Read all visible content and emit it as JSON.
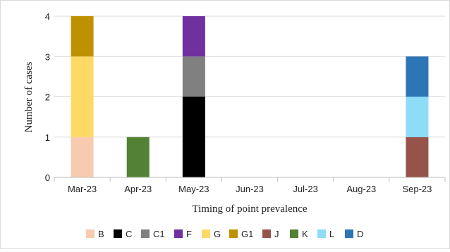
{
  "chart_data": {
    "type": "bar",
    "stacked": true,
    "categories": [
      "Mar-23",
      "Apr-23",
      "May-23",
      "Jun-23",
      "Jul-23",
      "Aug-23",
      "Sep-23"
    ],
    "series": [
      {
        "name": "B",
        "color": "#f7cbb0",
        "values": [
          1,
          0,
          0,
          0,
          0,
          0,
          0
        ]
      },
      {
        "name": "C",
        "color": "#000000",
        "values": [
          0,
          0,
          2,
          0,
          0,
          0,
          0
        ]
      },
      {
        "name": "C1",
        "color": "#808080",
        "values": [
          0,
          0,
          1,
          0,
          0,
          0,
          0
        ]
      },
      {
        "name": "F",
        "color": "#7030a0",
        "values": [
          0,
          0,
          1,
          0,
          0,
          0,
          0
        ]
      },
      {
        "name": "G",
        "color": "#ffd966",
        "values": [
          2,
          0,
          0,
          0,
          0,
          0,
          0
        ]
      },
      {
        "name": "G1",
        "color": "#bf9000",
        "values": [
          1,
          0,
          0,
          0,
          0,
          0,
          0
        ]
      },
      {
        "name": "J",
        "color": "#96534a",
        "values": [
          0,
          0,
          0,
          0,
          0,
          0,
          1
        ]
      },
      {
        "name": "K",
        "color": "#548235",
        "values": [
          0,
          1,
          0,
          0,
          0,
          0,
          0
        ]
      },
      {
        "name": "L",
        "color": "#8fdcf9",
        "values": [
          0,
          0,
          0,
          0,
          0,
          0,
          1
        ]
      },
      {
        "name": "D",
        "color": "#2e75b6",
        "values": [
          0,
          0,
          0,
          0,
          0,
          0,
          1
        ]
      }
    ],
    "xlabel": "Timing of point prevalence",
    "ylabel": "Number of cases",
    "ylim": [
      0,
      4
    ],
    "yticks": [
      "0",
      "1",
      "2",
      "3",
      "4"
    ],
    "grid": "horizontal",
    "legend": "bottom"
  }
}
